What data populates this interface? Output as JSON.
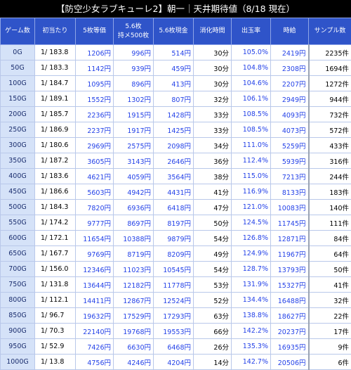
{
  "title": "【防空少女ラブキューレ2】朝一｜天井期待値（8/18 現在）",
  "headers": {
    "game": "ゲーム数",
    "rate": "初当たり",
    "ev5": "5枚等価",
    "ev56_line1": "5.6枚",
    "ev56_line2": "持メ500枚",
    "ev56cash": "5.6枚現金",
    "time": "消化時間",
    "payout": "出玉率",
    "hourly": "時給",
    "sample": "サンプル数"
  },
  "rows": [
    {
      "game": "0G",
      "rate": "1/ 183.8",
      "ev5": "1206円",
      "ev56": "996円",
      "ev56cash": "514円",
      "time": "30分",
      "payout": "105.0%",
      "hourly": "2419円",
      "sample": "2235件"
    },
    {
      "game": "50G",
      "rate": "1/ 183.3",
      "ev5": "1142円",
      "ev56": "939円",
      "ev56cash": "459円",
      "time": "30分",
      "payout": "104.8%",
      "hourly": "2308円",
      "sample": "1694件"
    },
    {
      "game": "100G",
      "rate": "1/ 184.7",
      "ev5": "1095円",
      "ev56": "896円",
      "ev56cash": "413円",
      "time": "30分",
      "payout": "104.6%",
      "hourly": "2207円",
      "sample": "1272件"
    },
    {
      "game": "150G",
      "rate": "1/ 189.1",
      "ev5": "1552円",
      "ev56": "1302円",
      "ev56cash": "807円",
      "time": "32分",
      "payout": "106.1%",
      "hourly": "2949円",
      "sample": "944件"
    },
    {
      "game": "200G",
      "rate": "1/ 185.7",
      "ev5": "2236円",
      "ev56": "1915円",
      "ev56cash": "1428円",
      "time": "33分",
      "payout": "108.5%",
      "hourly": "4093円",
      "sample": "732件"
    },
    {
      "game": "250G",
      "rate": "1/ 186.9",
      "ev5": "2237円",
      "ev56": "1917円",
      "ev56cash": "1425円",
      "time": "33分",
      "payout": "108.5%",
      "hourly": "4073円",
      "sample": "572件"
    },
    {
      "game": "300G",
      "rate": "1/ 180.6",
      "ev5": "2969円",
      "ev56": "2575円",
      "ev56cash": "2098円",
      "time": "34分",
      "payout": "111.0%",
      "hourly": "5259円",
      "sample": "433件"
    },
    {
      "game": "350G",
      "rate": "1/ 187.2",
      "ev5": "3605円",
      "ev56": "3143円",
      "ev56cash": "2646円",
      "time": "36分",
      "payout": "112.4%",
      "hourly": "5939円",
      "sample": "316件"
    },
    {
      "game": "400G",
      "rate": "1/ 183.6",
      "ev5": "4621円",
      "ev56": "4059円",
      "ev56cash": "3564円",
      "time": "38分",
      "payout": "115.0%",
      "hourly": "7213円",
      "sample": "244件"
    },
    {
      "game": "450G",
      "rate": "1/ 186.6",
      "ev5": "5603円",
      "ev56": "4942円",
      "ev56cash": "4431円",
      "time": "41分",
      "payout": "116.9%",
      "hourly": "8133円",
      "sample": "183件"
    },
    {
      "game": "500G",
      "rate": "1/ 184.3",
      "ev5": "7820円",
      "ev56": "6936円",
      "ev56cash": "6418円",
      "time": "47分",
      "payout": "121.0%",
      "hourly": "10083円",
      "sample": "140件"
    },
    {
      "game": "550G",
      "rate": "1/ 174.2",
      "ev5": "9777円",
      "ev56": "8697円",
      "ev56cash": "8197円",
      "time": "50分",
      "payout": "124.5%",
      "hourly": "11745円",
      "sample": "111件"
    },
    {
      "game": "600G",
      "rate": "1/ 172.1",
      "ev5": "11654円",
      "ev56": "10388円",
      "ev56cash": "9879円",
      "time": "54分",
      "payout": "126.8%",
      "hourly": "12871円",
      "sample": "84件"
    },
    {
      "game": "650G",
      "rate": "1/ 167.7",
      "ev5": "9769円",
      "ev56": "8719円",
      "ev56cash": "8209円",
      "time": "49分",
      "payout": "124.9%",
      "hourly": "11967円",
      "sample": "64件"
    },
    {
      "game": "700G",
      "rate": "1/ 156.0",
      "ev5": "12346円",
      "ev56": "11023円",
      "ev56cash": "10545円",
      "time": "54分",
      "payout": "128.7%",
      "hourly": "13793円",
      "sample": "50件"
    },
    {
      "game": "750G",
      "rate": "1/ 131.8",
      "ev5": "13644円",
      "ev56": "12182円",
      "ev56cash": "11778円",
      "time": "53分",
      "payout": "131.9%",
      "hourly": "15327円",
      "sample": "41件"
    },
    {
      "game": "800G",
      "rate": "1/ 112.1",
      "ev5": "14411円",
      "ev56": "12867円",
      "ev56cash": "12524円",
      "time": "52分",
      "payout": "134.4%",
      "hourly": "16488円",
      "sample": "32件"
    },
    {
      "game": "850G",
      "rate": "1/ 96.7",
      "ev5": "19632円",
      "ev56": "17529円",
      "ev56cash": "17293円",
      "time": "63分",
      "payout": "138.8%",
      "hourly": "18627円",
      "sample": "22件"
    },
    {
      "game": "900G",
      "rate": "1/ 70.3",
      "ev5": "22140円",
      "ev56": "19768円",
      "ev56cash": "19553円",
      "time": "66分",
      "payout": "142.2%",
      "hourly": "20237円",
      "sample": "17件"
    },
    {
      "game": "950G",
      "rate": "1/ 52.9",
      "ev5": "7426円",
      "ev56": "6630円",
      "ev56cash": "6468円",
      "time": "26分",
      "payout": "135.3%",
      "hourly": "16935円",
      "sample": "9件"
    },
    {
      "game": "1000G",
      "rate": "1/ 13.8",
      "ev5": "4756円",
      "ev56": "4246円",
      "ev56cash": "4204円",
      "time": "14分",
      "payout": "142.7%",
      "hourly": "20506円",
      "sample": "6件"
    }
  ]
}
